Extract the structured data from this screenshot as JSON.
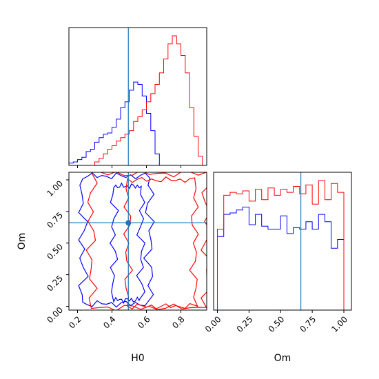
{
  "chart_data": {
    "type": "corner",
    "parameters": [
      {
        "name": "H0",
        "label": "H0",
        "range": [
          0.15,
          0.95
        ],
        "ticks": [
          "0.2",
          "0.4",
          "0.6",
          "0.8"
        ],
        "tick_values": [
          0.2,
          0.4,
          0.6,
          0.8
        ],
        "truth": 0.495
      },
      {
        "name": "Om",
        "label": "Om",
        "range": [
          -0.03,
          1.06
        ],
        "ticks": [
          "0.00",
          "0.25",
          "0.50",
          "0.75",
          "1.00"
        ],
        "tick_values": [
          0.0,
          0.25,
          0.5,
          0.75,
          1.0
        ],
        "truth": 0.66
      }
    ],
    "colors": {
      "blue": "#0000ff",
      "red": "#ff0000",
      "truth": "#1f77b4"
    },
    "histograms": {
      "H0": {
        "bin_edges": [
          0.15,
          0.175,
          0.2,
          0.225,
          0.25,
          0.275,
          0.3,
          0.325,
          0.35,
          0.375,
          0.4,
          0.425,
          0.45,
          0.475,
          0.5,
          0.525,
          0.55,
          0.575,
          0.6,
          0.625,
          0.65,
          0.675,
          0.7,
          0.725,
          0.75,
          0.775,
          0.8,
          0.825,
          0.85,
          0.875,
          0.9,
          0.925,
          0.95
        ],
        "series": [
          {
            "color": "blue",
            "counts": [
              2,
              3,
              5,
              7,
              12,
              14,
              20,
              24,
              27,
              28,
              33,
              40,
              50,
              55,
              65,
              72,
              70,
              60,
              45,
              30,
              10,
              0,
              0,
              0,
              0,
              0,
              0,
              0,
              0,
              0,
              0,
              0
            ]
          },
          {
            "color": "red",
            "counts": [
              0,
              0,
              0,
              0,
              0,
              0,
              3,
              6,
              10,
              14,
              17,
              21,
              24,
              27,
              30,
              38,
              42,
              48,
              55,
              62,
              70,
              80,
              92,
              105,
              112,
              105,
              95,
              80,
              50,
              25,
              8,
              0
            ]
          }
        ]
      },
      "Om": {
        "bin_edges": [
          -0.03,
          0.0,
          0.05,
          0.1,
          0.15,
          0.2,
          0.25,
          0.3,
          0.35,
          0.4,
          0.45,
          0.5,
          0.55,
          0.6,
          0.65,
          0.7,
          0.75,
          0.8,
          0.85,
          0.9,
          0.95,
          1.0,
          1.06
        ],
        "series": [
          {
            "color": "blue",
            "counts": [
              0,
              50,
              65,
              66,
              68,
              70,
              58,
              65,
              57,
              55,
              55,
              64,
              52,
              56,
              55,
              60,
              55,
              65,
              60,
              42,
              48,
              0
            ]
          },
          {
            "color": "red",
            "counts": [
              0,
              55,
              78,
              80,
              79,
              81,
              74,
              82,
              75,
              83,
              78,
              82,
              80,
              84,
              79,
              85,
              72,
              88,
              75,
              86,
              80,
              0
            ]
          }
        ]
      }
    },
    "contours_2d": {
      "x": "H0",
      "y": "Om",
      "series": [
        {
          "color": "blue",
          "regions": [
            {
              "kind": "main",
              "x_range": [
                0.23,
                0.62
              ],
              "y_range": [
                0.02,
                1.03
              ]
            },
            {
              "kind": "inner",
              "x_range": [
                0.41,
                0.57
              ],
              "y_range": [
                0.05,
                0.95
              ]
            }
          ]
        },
        {
          "color": "red",
          "regions": [
            {
              "kind": "main",
              "x_range": [
                0.28,
                0.95
              ],
              "y_range": [
                -0.01,
                1.05
              ]
            },
            {
              "kind": "inner",
              "x_range": [
                0.49,
                0.88
              ],
              "y_range": [
                0.0,
                1.0
              ]
            }
          ]
        }
      ]
    },
    "truth_point": {
      "x": 0.495,
      "y": 0.66
    }
  }
}
